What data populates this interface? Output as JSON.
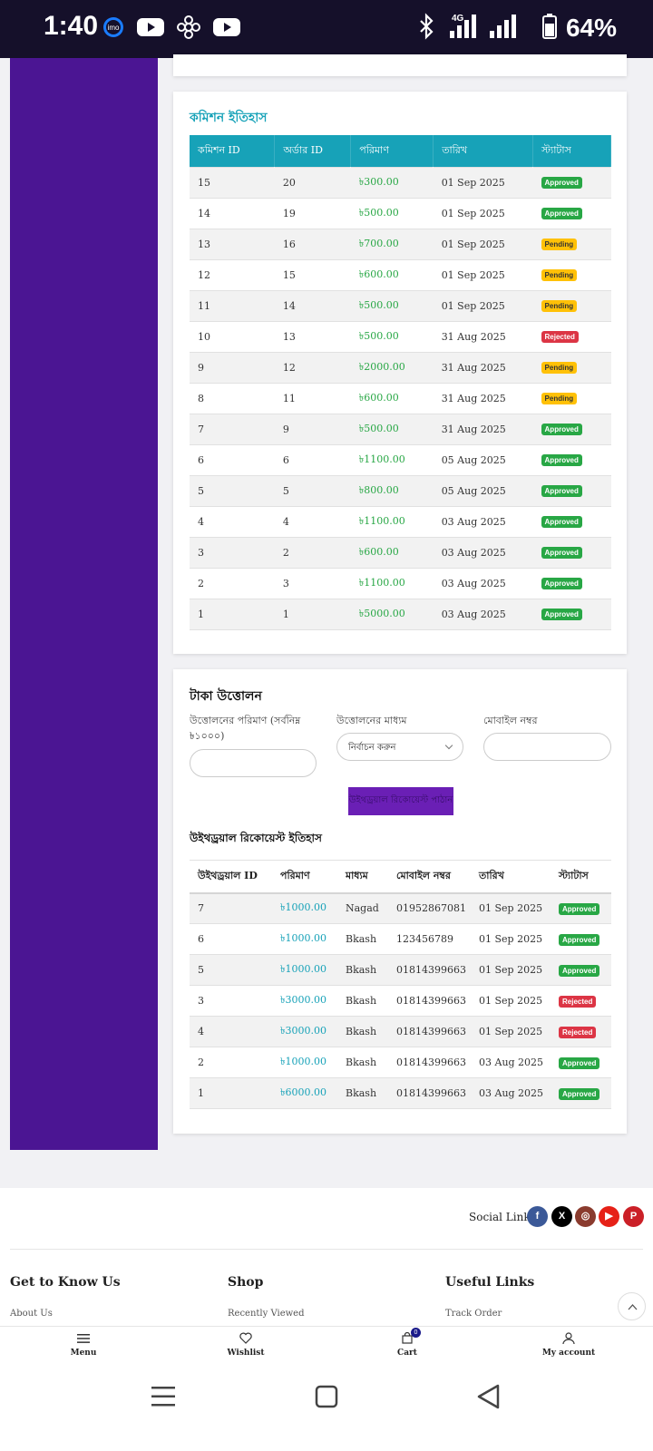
{
  "status_bar": {
    "time": "1:40",
    "battery": "64%",
    "network": "4G",
    "icons": [
      "imo-icon",
      "youtube-icon",
      "pinwheel-icon",
      "youtube-icon",
      "bluetooth-icon",
      "signal-icon",
      "battery-icon"
    ]
  },
  "commission": {
    "title": "কমিশন ইতিহাস",
    "headers": [
      "কমিশন ID",
      "অর্ডার ID",
      "পরিমাণ",
      "তারিখ",
      "স্ট্যাটাস"
    ],
    "rows": [
      {
        "id": "15",
        "order": "20",
        "amount": "৳300.00",
        "date": "01 Sep 2025",
        "status": "Approved"
      },
      {
        "id": "14",
        "order": "19",
        "amount": "৳500.00",
        "date": "01 Sep 2025",
        "status": "Approved"
      },
      {
        "id": "13",
        "order": "16",
        "amount": "৳700.00",
        "date": "01 Sep 2025",
        "status": "Pending"
      },
      {
        "id": "12",
        "order": "15",
        "amount": "৳600.00",
        "date": "01 Sep 2025",
        "status": "Pending"
      },
      {
        "id": "11",
        "order": "14",
        "amount": "৳500.00",
        "date": "01 Sep 2025",
        "status": "Pending"
      },
      {
        "id": "10",
        "order": "13",
        "amount": "৳500.00",
        "date": "31 Aug 2025",
        "status": "Rejected"
      },
      {
        "id": "9",
        "order": "12",
        "amount": "৳2000.00",
        "date": "31 Aug 2025",
        "status": "Pending"
      },
      {
        "id": "8",
        "order": "11",
        "amount": "৳600.00",
        "date": "31 Aug 2025",
        "status": "Pending"
      },
      {
        "id": "7",
        "order": "9",
        "amount": "৳500.00",
        "date": "31 Aug 2025",
        "status": "Approved"
      },
      {
        "id": "6",
        "order": "6",
        "amount": "৳1100.00",
        "date": "05 Aug 2025",
        "status": "Approved"
      },
      {
        "id": "5",
        "order": "5",
        "amount": "৳800.00",
        "date": "05 Aug 2025",
        "status": "Approved"
      },
      {
        "id": "4",
        "order": "4",
        "amount": "৳1100.00",
        "date": "03 Aug 2025",
        "status": "Approved"
      },
      {
        "id": "3",
        "order": "2",
        "amount": "৳600.00",
        "date": "03 Aug 2025",
        "status": "Approved"
      },
      {
        "id": "2",
        "order": "3",
        "amount": "৳1100.00",
        "date": "03 Aug 2025",
        "status": "Approved"
      },
      {
        "id": "1",
        "order": "1",
        "amount": "৳5000.00",
        "date": "03 Aug 2025",
        "status": "Approved"
      }
    ]
  },
  "withdraw": {
    "title": "টাকা উত্তোলন",
    "amount_label": "উত্তোলনের পরিমাণ (সর্বনিম্ন ৳১০০০)",
    "amount_value": "",
    "method_label": "উত্তোলনের মাধ্যম",
    "method_selected": "নির্বাচন করুন",
    "mobile_label": "মোবাইল নম্বর",
    "mobile_value": "",
    "submit_label": "উইথড্রয়াল রিকোয়েস্ট পাঠান",
    "history_title": "উইথড্রয়াল রিকোয়েস্ট ইতিহাস",
    "headers": [
      "উইথড্রয়াল ID",
      "পরিমাণ",
      "মাধ্যম",
      "মোবাইল নম্বর",
      "তারিখ",
      "স্ট্যাটাস"
    ],
    "rows": [
      {
        "id": "7",
        "amount": "৳1000.00",
        "method": "Nagad",
        "mobile": "01952867081",
        "date": "01 Sep 2025",
        "status": "Approved"
      },
      {
        "id": "6",
        "amount": "৳1000.00",
        "method": "Bkash",
        "mobile": "123456789",
        "date": "01 Sep 2025",
        "status": "Approved"
      },
      {
        "id": "5",
        "amount": "৳1000.00",
        "method": "Bkash",
        "mobile": "01814399663",
        "date": "01 Sep 2025",
        "status": "Approved"
      },
      {
        "id": "3",
        "amount": "৳3000.00",
        "method": "Bkash",
        "mobile": "01814399663",
        "date": "01 Sep 2025",
        "status": "Rejected"
      },
      {
        "id": "4",
        "amount": "৳3000.00",
        "method": "Bkash",
        "mobile": "01814399663",
        "date": "01 Sep 2025",
        "status": "Rejected"
      },
      {
        "id": "2",
        "amount": "৳1000.00",
        "method": "Bkash",
        "mobile": "01814399663",
        "date": "03 Aug 2025",
        "status": "Approved"
      },
      {
        "id": "1",
        "amount": "৳6000.00",
        "method": "Bkash",
        "mobile": "01814399663",
        "date": "03 Aug 2025",
        "status": "Approved"
      }
    ]
  },
  "footer": {
    "social_label": "Social Links",
    "social": [
      {
        "icon": "facebook-icon",
        "glyph": "f",
        "color": "#3b5998"
      },
      {
        "icon": "x-icon",
        "glyph": "X",
        "color": "#000000"
      },
      {
        "icon": "instagram-icon",
        "glyph": "◎",
        "color": "#8a3b2e"
      },
      {
        "icon": "youtube-icon",
        "glyph": "▶",
        "color": "#e62117"
      },
      {
        "icon": "pinterest-icon",
        "glyph": "P",
        "color": "#cb2027"
      }
    ],
    "col1_title": "Get to Know Us",
    "col1_link": "About Us",
    "col2_title": "Shop",
    "col2_link": "Recently Viewed",
    "col3_title": "Useful Links",
    "col3_link": "Track Order"
  },
  "bottom_nav": {
    "menu": "Menu",
    "wishlist": "Wishlist",
    "cart": "Cart",
    "cart_count": "0",
    "account": "My account"
  },
  "colors": {
    "sidebar": "#4b1593",
    "accent": "#17a2b8",
    "amount_green": "#28a745",
    "approved": "#28a745",
    "pending": "#ffc107",
    "rejected": "#dc3545",
    "button": "#6a1fb5",
    "status_bar": "#15102a"
  }
}
